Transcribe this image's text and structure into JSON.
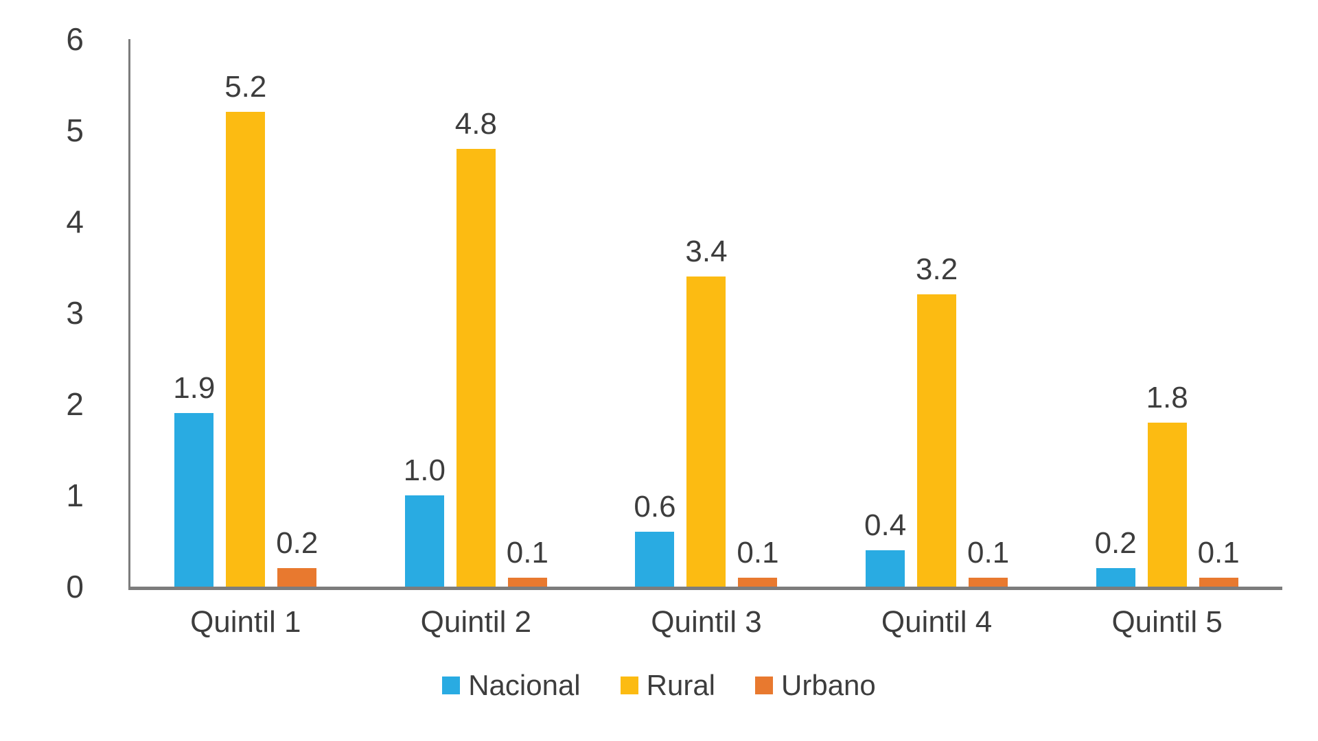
{
  "chart_data": {
    "type": "bar",
    "categories": [
      "Quintil 1",
      "Quintil 2",
      "Quintil 3",
      "Quintil 4",
      "Quintil 5"
    ],
    "series": [
      {
        "name": "Nacional",
        "color": "#29abe2",
        "values": [
          1.9,
          1.0,
          0.6,
          0.4,
          0.2
        ],
        "labels": [
          "1.9",
          "1.0",
          "0.6",
          "0.4",
          "0.2"
        ]
      },
      {
        "name": "Rural",
        "color": "#fcbb12",
        "values": [
          5.2,
          4.8,
          3.4,
          3.2,
          1.8
        ],
        "labels": [
          "5.2",
          "4.8",
          "3.4",
          "3.2",
          "1.8"
        ]
      },
      {
        "name": "Urbano",
        "color": "#e8792f",
        "values": [
          0.2,
          0.1,
          0.1,
          0.1,
          0.1
        ],
        "labels": [
          "0.2",
          "0.1",
          "0.1",
          "0.1",
          "0.1"
        ]
      }
    ],
    "title": "",
    "xlabel": "",
    "ylabel": "",
    "ylim": [
      0,
      6
    ],
    "yticks": [
      "0",
      "1",
      "2",
      "3",
      "4",
      "5",
      "6"
    ],
    "grid": false,
    "legend_position": "bottom",
    "axis_color": "#7c7c7c",
    "text_color": "#3d3d3d",
    "background_color": "#ffffff"
  }
}
